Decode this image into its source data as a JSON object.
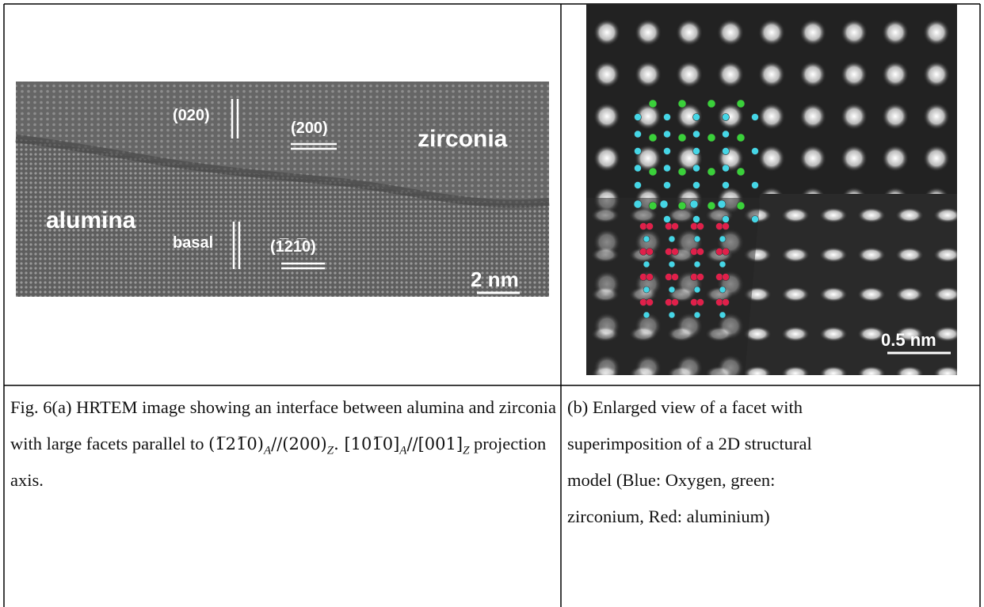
{
  "panel_a": {
    "labels": {
      "plane_020": "(020)",
      "plane_200": "(200)",
      "zirconia": "zirconia",
      "alumina": "alumina",
      "basal": "basal",
      "plane_1210": "(1̅21̅0)",
      "scale_bar": "2 nm"
    },
    "caption": [
      "Fig. 6(a) HRTEM image showing an interface between alumina and zirconia with large facets parallel to ",
      "(1̅21̅0)",
      "A",
      "//(200)",
      "Z",
      ". [101̅0]",
      "A",
      "//[001]",
      "Z",
      " projection axis."
    ]
  },
  "panel_b": {
    "labels": {
      "scale_bar": "0.5 nm"
    },
    "caption": "(b) Enlarged view of a facet with superimposition of a 2D structural model (Blue: Oxygen, green: zirconium, Red: aluminium)"
  }
}
